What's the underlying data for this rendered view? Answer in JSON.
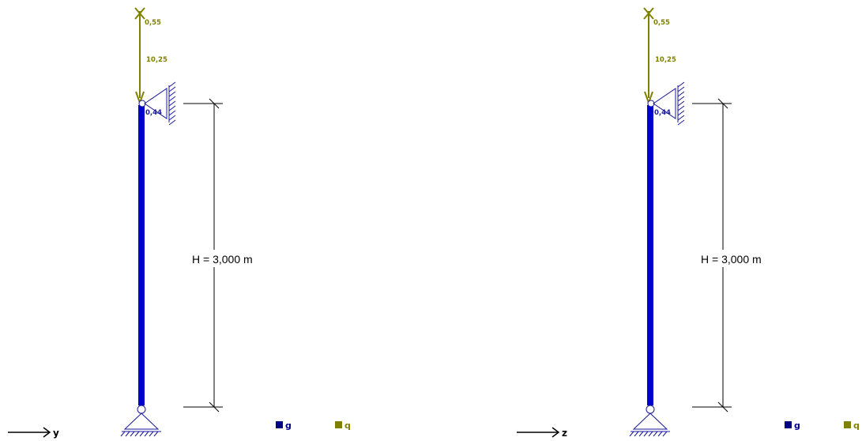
{
  "colors": {
    "member": "#0000cc",
    "support": "#1a1a9a",
    "load_q": "#808000",
    "load_q_text": "#808000",
    "g_legend": "#000080",
    "q_legend": "#808000",
    "dimension": "#000000"
  },
  "panels": [
    {
      "id": "left",
      "axis_label": "y",
      "height_label": "H = 3,000 m",
      "load_value": "10,25",
      "top_overlap_label": "0,55",
      "node_label": "0,44",
      "legend": [
        {
          "key": "g",
          "label": "g"
        },
        {
          "key": "q",
          "label": "q"
        }
      ]
    },
    {
      "id": "right",
      "axis_label": "z",
      "height_label": "H = 3,000 m",
      "load_value": "10,25",
      "top_overlap_label": "0,55",
      "node_label": "0,44",
      "legend": [
        {
          "key": "g",
          "label": "g"
        },
        {
          "key": "q",
          "label": "q"
        }
      ]
    }
  ]
}
